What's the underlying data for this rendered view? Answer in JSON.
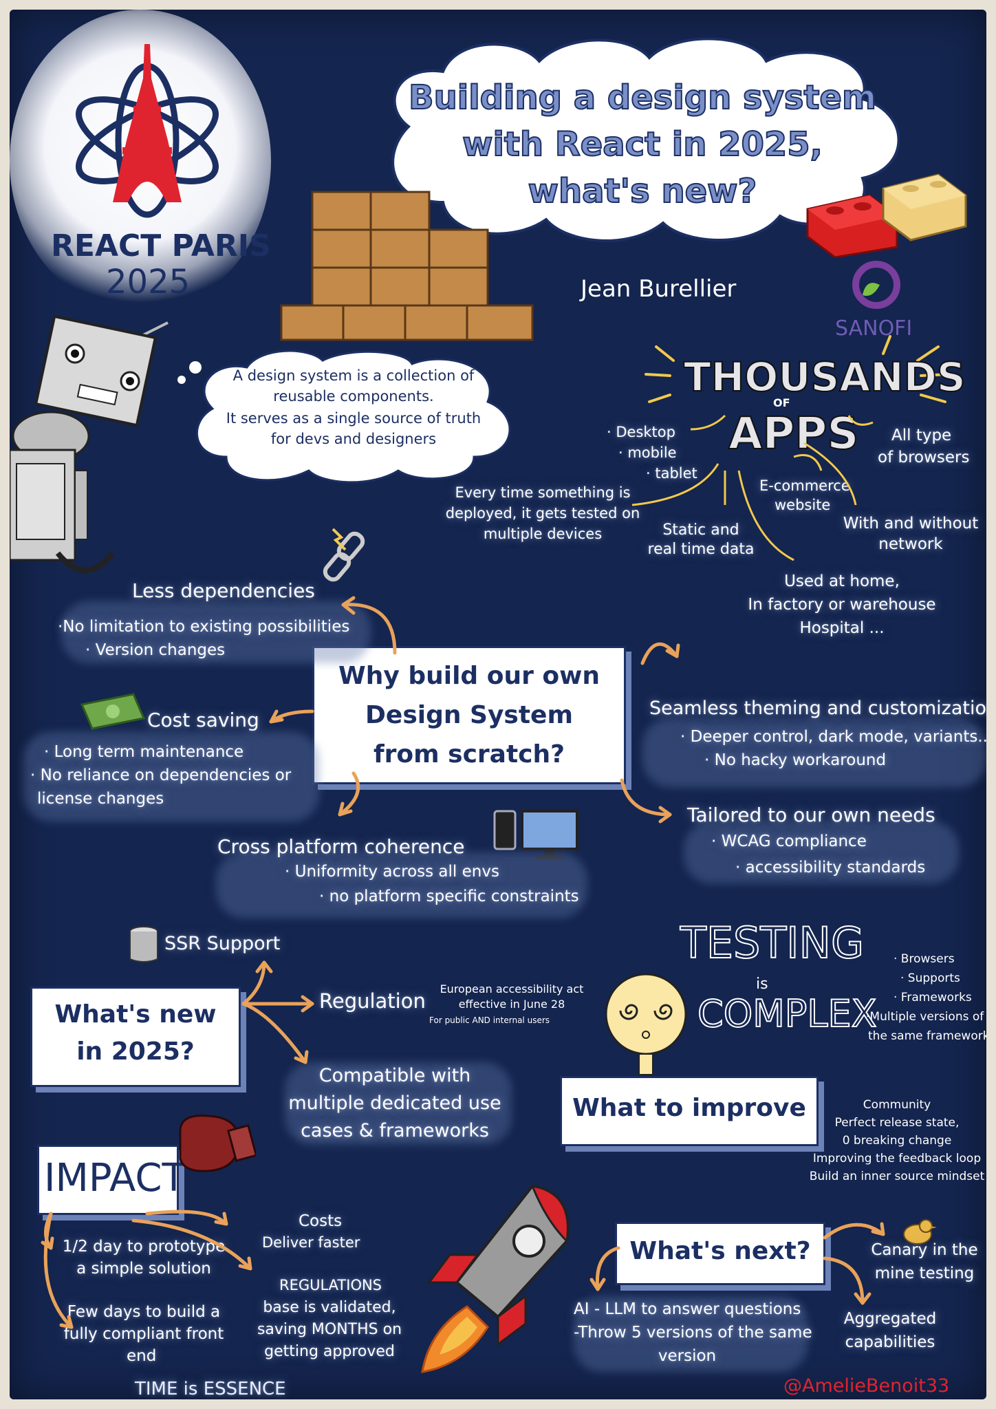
{
  "logo": {
    "brand": "REACT PARIS",
    "year": "2025",
    "icon": "eiffel-tower-atom-icon"
  },
  "title": {
    "line1": "Building a design system",
    "line2": "with React in 2025,",
    "line3": "what's new?"
  },
  "speaker": "Jean Burellier",
  "company": "SANOFI",
  "definition": {
    "line1": "A design system is a collection of",
    "line2": "reusable components.",
    "line3": "It serves as a single source of truth",
    "line4": "for devs and designers"
  },
  "apps": {
    "thousands": "THOUSANDS",
    "of": "OF",
    "apps": "APPS",
    "devices": [
      "· Desktop",
      "· mobile",
      "· tablet"
    ],
    "browsers": [
      "All type",
      "of browsers"
    ],
    "ecommerce": [
      "E-commerce",
      "website"
    ],
    "tested": [
      "Every time something is",
      "deployed, it gets tested on",
      "multiple devices"
    ],
    "static": [
      "Static and",
      "real time data"
    ],
    "network": [
      "With and without",
      "network"
    ],
    "used": [
      "Used at home,",
      "In factory or warehouse",
      "Hospital ..."
    ]
  },
  "why": {
    "question": [
      "Why build our own",
      "Design System",
      "from scratch?"
    ],
    "less_dep": {
      "title": "Less dependencies",
      "items": [
        "·No limitation to existing possibilities",
        "· Version changes"
      ]
    },
    "cost": {
      "title": "Cost saving",
      "items": [
        "· Long term maintenance",
        "· No reliance on dependencies or",
        "license changes"
      ]
    },
    "cross": {
      "title": "Cross platform coherence",
      "items": [
        "· Uniformity across all envs",
        "· no platform specific constraints"
      ]
    },
    "theming": {
      "title": "Seamless theming and customization",
      "items": [
        "· Deeper control, dark mode, variants...",
        "· No hacky workaround"
      ]
    },
    "tailored": {
      "title": "Tailored to our own needs",
      "items": [
        "· WCAG compliance",
        "· accessibility standards"
      ]
    }
  },
  "new2025": {
    "title": [
      "What's new",
      "in 2025?"
    ],
    "ssr": "SSR Support",
    "regulation": "Regulation",
    "act": [
      "European accessibility act",
      "effective in June 28"
    ],
    "act_note": "For public AND internal users",
    "compatible": [
      "Compatible with",
      "multiple dedicated use",
      "cases & frameworks"
    ]
  },
  "testing": {
    "testing": "TESTING",
    "is": "is",
    "complex": "COMPLEX",
    "items": [
      "· Browsers",
      "· Supports",
      "· Frameworks",
      "·Multiple versions of",
      "the same framework"
    ]
  },
  "improve": {
    "title": "What to improve",
    "items": [
      "Community",
      "Perfect release state,",
      "0 breaking change",
      "Improving the feedback loop",
      "Build an inner source mindset"
    ]
  },
  "impact": {
    "title": "IMPACT",
    "prototype": [
      "1/2 day to prototype",
      "a simple solution"
    ],
    "fewdays": [
      "Few days to build a",
      "fully compliant front",
      "end"
    ],
    "costs": [
      "Costs",
      "Deliver faster"
    ],
    "regs": [
      "REGULATIONS",
      "base is validated,",
      "saving MONTHS on",
      "getting approved"
    ],
    "time": "TIME is ESSENCE"
  },
  "next": {
    "title": "What's next?",
    "ai": [
      "AI - LLM to answer questions",
      "-Throw 5 versions of the same",
      "version"
    ],
    "canary": [
      "Canary in the",
      "mine testing"
    ],
    "aggregated": [
      "Aggregated",
      "capabilities"
    ]
  },
  "signature": "@AmelieBenoit33",
  "colors": {
    "background": "#14254f",
    "navy": "#1c2f63",
    "red": "#e0242f",
    "orange": "#e9a25a",
    "signature_red": "#e0242f"
  }
}
